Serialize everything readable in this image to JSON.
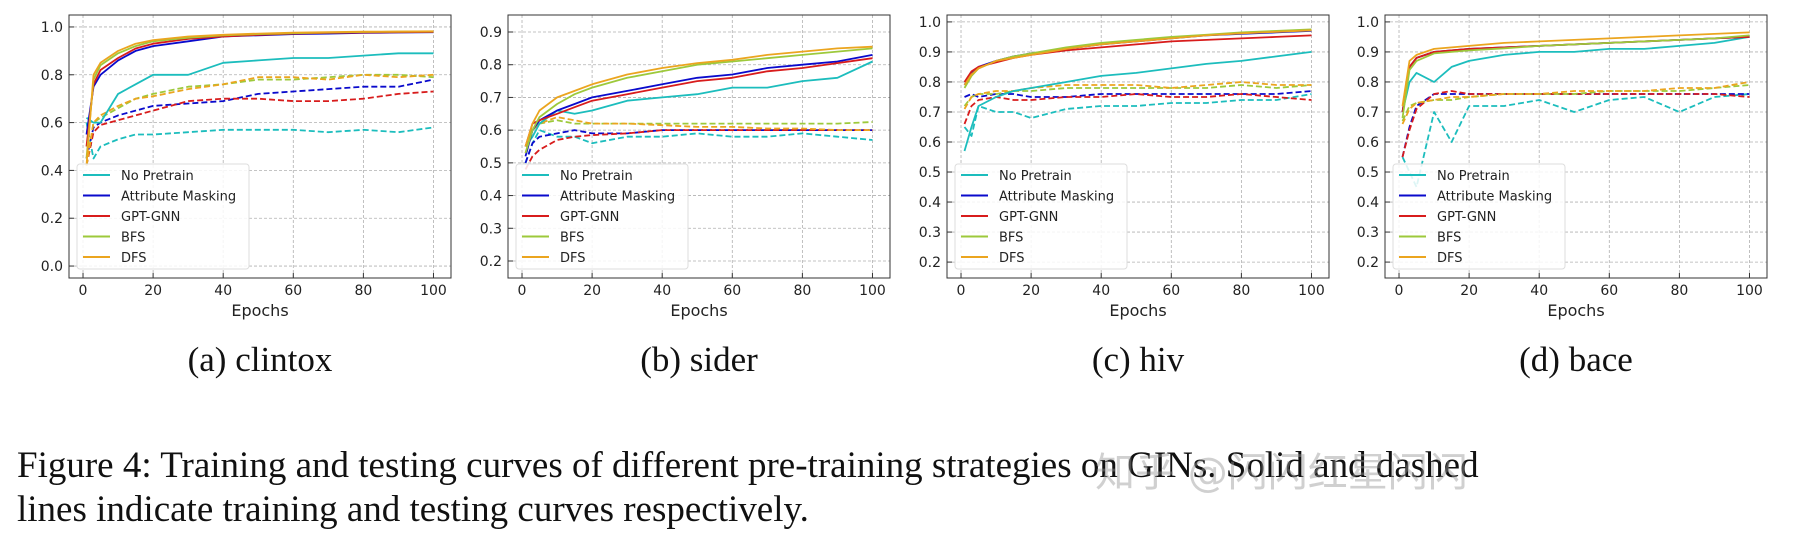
{
  "legend_labels": [
    "No Pretrain",
    "Attribute Masking",
    "GPT-GNN",
    "BFS",
    "DFS"
  ],
  "series_colors": [
    "#1cbdbd",
    "#0a0acc",
    "#d81c1c",
    "#9dc93b",
    "#eba51f"
  ],
  "line_styles": {
    "train": "solid",
    "test": "dashed"
  },
  "figure_caption": {
    "line1": "Figure 4: Training and testing curves of different pre-training strategies on GINs. Solid and dashed",
    "line2": "lines indicate training and testing curves respectively."
  },
  "watermark": "知乎 @闪闪红星闪闪",
  "chart_data": [
    {
      "type": "line",
      "caption": "(a) clintox",
      "xlabel": "Epochs",
      "ylabel": "",
      "xlim": [
        -4,
        105
      ],
      "ylim": [
        -0.05,
        1.05
      ],
      "xticks": [
        0,
        20,
        40,
        60,
        80,
        100
      ],
      "yticks": [
        "0.0",
        "0.2",
        "0.4",
        "0.6",
        "0.8",
        "1.0"
      ],
      "grid": true,
      "legend_placement": "lower-left",
      "x": [
        1,
        3,
        5,
        10,
        15,
        20,
        30,
        40,
        50,
        60,
        70,
        80,
        90,
        100
      ],
      "train": [
        [
          0.62,
          0.6,
          0.6,
          0.72,
          0.76,
          0.8,
          0.8,
          0.85,
          0.86,
          0.87,
          0.87,
          0.88,
          0.89,
          0.89
        ],
        [
          0.55,
          0.75,
          0.8,
          0.86,
          0.9,
          0.92,
          0.94,
          0.96,
          0.965,
          0.97,
          0.972,
          0.975,
          0.977,
          0.978
        ],
        [
          0.5,
          0.76,
          0.82,
          0.87,
          0.91,
          0.93,
          0.95,
          0.96,
          0.967,
          0.972,
          0.975,
          0.977,
          0.978,
          0.979
        ],
        [
          0.45,
          0.78,
          0.84,
          0.89,
          0.92,
          0.94,
          0.955,
          0.965,
          0.97,
          0.974,
          0.977,
          0.979,
          0.98,
          0.981
        ],
        [
          0.42,
          0.8,
          0.85,
          0.9,
          0.93,
          0.945,
          0.96,
          0.967,
          0.972,
          0.976,
          0.978,
          0.98,
          0.981,
          0.982
        ]
      ],
      "test": [
        [
          0.6,
          0.45,
          0.5,
          0.53,
          0.55,
          0.55,
          0.56,
          0.57,
          0.57,
          0.57,
          0.56,
          0.57,
          0.56,
          0.58
        ],
        [
          0.45,
          0.58,
          0.6,
          0.63,
          0.65,
          0.67,
          0.68,
          0.69,
          0.72,
          0.73,
          0.74,
          0.75,
          0.75,
          0.78
        ],
        [
          0.42,
          0.56,
          0.59,
          0.61,
          0.63,
          0.65,
          0.69,
          0.7,
          0.7,
          0.69,
          0.69,
          0.7,
          0.72,
          0.73
        ],
        [
          0.42,
          0.6,
          0.62,
          0.66,
          0.7,
          0.72,
          0.75,
          0.76,
          0.78,
          0.78,
          0.79,
          0.8,
          0.8,
          0.79
        ],
        [
          0.42,
          0.6,
          0.63,
          0.67,
          0.7,
          0.71,
          0.74,
          0.76,
          0.79,
          0.79,
          0.78,
          0.8,
          0.79,
          0.8
        ]
      ]
    },
    {
      "type": "line",
      "caption": "(b) sider",
      "xlabel": "Epochs",
      "ylabel": "",
      "xlim": [
        -4,
        105
      ],
      "ylim": [
        0.148,
        0.952
      ],
      "xticks": [
        0,
        20,
        40,
        60,
        80,
        100
      ],
      "yticks": [
        "0.2",
        "0.3",
        "0.4",
        "0.5",
        "0.6",
        "0.7",
        "0.8",
        "0.9"
      ],
      "grid": true,
      "legend_placement": "lower-left",
      "x": [
        1,
        3,
        5,
        10,
        15,
        20,
        30,
        40,
        50,
        60,
        70,
        80,
        90,
        100
      ],
      "train": [
        [
          0.55,
          0.58,
          0.62,
          0.66,
          0.65,
          0.66,
          0.69,
          0.7,
          0.71,
          0.73,
          0.73,
          0.75,
          0.76,
          0.81
        ],
        [
          0.52,
          0.6,
          0.63,
          0.66,
          0.68,
          0.7,
          0.72,
          0.74,
          0.76,
          0.77,
          0.79,
          0.8,
          0.81,
          0.83
        ],
        [
          0.55,
          0.62,
          0.63,
          0.65,
          0.67,
          0.69,
          0.71,
          0.73,
          0.75,
          0.76,
          0.78,
          0.79,
          0.805,
          0.82
        ],
        [
          0.53,
          0.6,
          0.64,
          0.68,
          0.71,
          0.73,
          0.76,
          0.78,
          0.8,
          0.81,
          0.82,
          0.83,
          0.84,
          0.85
        ],
        [
          0.55,
          0.62,
          0.66,
          0.7,
          0.72,
          0.74,
          0.77,
          0.79,
          0.805,
          0.815,
          0.83,
          0.84,
          0.85,
          0.855
        ]
      ],
      "test": [
        [
          0.5,
          0.56,
          0.6,
          0.58,
          0.58,
          0.56,
          0.58,
          0.58,
          0.59,
          0.58,
          0.58,
          0.59,
          0.58,
          0.57
        ],
        [
          0.5,
          0.56,
          0.58,
          0.59,
          0.6,
          0.59,
          0.59,
          0.6,
          0.6,
          0.6,
          0.6,
          0.6,
          0.6,
          0.6
        ],
        [
          0.48,
          0.52,
          0.54,
          0.57,
          0.58,
          0.585,
          0.59,
          0.6,
          0.6,
          0.6,
          0.6,
          0.6,
          0.6,
          0.6
        ],
        [
          0.55,
          0.6,
          0.62,
          0.63,
          0.62,
          0.62,
          0.62,
          0.62,
          0.62,
          0.62,
          0.62,
          0.62,
          0.62,
          0.625
        ],
        [
          0.53,
          0.6,
          0.62,
          0.64,
          0.63,
          0.62,
          0.62,
          0.615,
          0.61,
          0.61,
          0.605,
          0.605,
          0.6,
          0.6
        ]
      ]
    },
    {
      "type": "line",
      "caption": "(c) hiv",
      "xlabel": "Epochs",
      "ylabel": "",
      "xlim": [
        -4,
        105
      ],
      "ylim": [
        0.147,
        1.023
      ],
      "xticks": [
        0,
        20,
        40,
        60,
        80,
        100
      ],
      "yticks": [
        "0.2",
        "0.3",
        "0.4",
        "0.5",
        "0.6",
        "0.7",
        "0.8",
        "0.9",
        "1.0"
      ],
      "grid": true,
      "legend_placement": "lower-left",
      "x": [
        1,
        3,
        5,
        10,
        15,
        20,
        30,
        40,
        50,
        60,
        70,
        80,
        90,
        100
      ],
      "train": [
        [
          0.57,
          0.65,
          0.72,
          0.75,
          0.77,
          0.78,
          0.8,
          0.82,
          0.83,
          0.845,
          0.86,
          0.87,
          0.885,
          0.9
        ],
        [
          0.79,
          0.83,
          0.85,
          0.87,
          0.885,
          0.895,
          0.91,
          0.925,
          0.935,
          0.945,
          0.955,
          0.96,
          0.965,
          0.97
        ],
        [
          0.8,
          0.835,
          0.85,
          0.865,
          0.88,
          0.89,
          0.905,
          0.915,
          0.925,
          0.935,
          0.94,
          0.945,
          0.95,
          0.955
        ],
        [
          0.78,
          0.82,
          0.845,
          0.87,
          0.885,
          0.895,
          0.915,
          0.93,
          0.94,
          0.95,
          0.957,
          0.965,
          0.97,
          0.975
        ],
        [
          0.79,
          0.825,
          0.845,
          0.87,
          0.88,
          0.89,
          0.91,
          0.925,
          0.935,
          0.945,
          0.955,
          0.962,
          0.967,
          0.972
        ]
      ],
      "test": [
        [
          0.65,
          0.62,
          0.72,
          0.7,
          0.7,
          0.68,
          0.71,
          0.72,
          0.72,
          0.73,
          0.73,
          0.74,
          0.74,
          0.76
        ],
        [
          0.75,
          0.76,
          0.75,
          0.76,
          0.76,
          0.75,
          0.75,
          0.76,
          0.76,
          0.76,
          0.76,
          0.76,
          0.76,
          0.77
        ],
        [
          0.66,
          0.72,
          0.74,
          0.75,
          0.74,
          0.74,
          0.75,
          0.75,
          0.76,
          0.75,
          0.75,
          0.76,
          0.75,
          0.74
        ],
        [
          0.72,
          0.75,
          0.76,
          0.76,
          0.77,
          0.77,
          0.78,
          0.78,
          0.78,
          0.78,
          0.78,
          0.79,
          0.78,
          0.79
        ],
        [
          0.71,
          0.75,
          0.76,
          0.77,
          0.77,
          0.78,
          0.79,
          0.79,
          0.79,
          0.78,
          0.79,
          0.8,
          0.79,
          0.79
        ]
      ]
    },
    {
      "type": "line",
      "caption": "(d) bace",
      "xlabel": "Epochs",
      "ylabel": "",
      "xlim": [
        -4,
        105
      ],
      "ylim": [
        0.147,
        1.023
      ],
      "xticks": [
        0,
        20,
        40,
        60,
        80,
        100
      ],
      "yticks": [
        "0.2",
        "0.3",
        "0.4",
        "0.5",
        "0.6",
        "0.7",
        "0.8",
        "0.9",
        "1.0"
      ],
      "grid": true,
      "legend_placement": "lower-left",
      "x": [
        1,
        3,
        5,
        10,
        15,
        20,
        30,
        40,
        50,
        60,
        70,
        80,
        90,
        100
      ],
      "train": [
        [
          0.7,
          0.8,
          0.83,
          0.8,
          0.85,
          0.87,
          0.89,
          0.9,
          0.9,
          0.91,
          0.91,
          0.92,
          0.93,
          0.95
        ],
        [
          0.7,
          0.85,
          0.88,
          0.9,
          0.905,
          0.91,
          0.915,
          0.92,
          0.925,
          0.93,
          0.935,
          0.94,
          0.945,
          0.95
        ],
        [
          0.7,
          0.85,
          0.88,
          0.9,
          0.905,
          0.91,
          0.915,
          0.92,
          0.925,
          0.93,
          0.935,
          0.94,
          0.945,
          0.95
        ],
        [
          0.68,
          0.84,
          0.87,
          0.895,
          0.9,
          0.905,
          0.912,
          0.92,
          0.925,
          0.93,
          0.935,
          0.94,
          0.945,
          0.955
        ],
        [
          0.72,
          0.87,
          0.89,
          0.91,
          0.915,
          0.92,
          0.93,
          0.935,
          0.94,
          0.945,
          0.95,
          0.955,
          0.96,
          0.965
        ]
      ],
      "test": [
        [
          0.55,
          0.5,
          0.45,
          0.7,
          0.6,
          0.72,
          0.72,
          0.74,
          0.7,
          0.74,
          0.75,
          0.7,
          0.75,
          0.76
        ],
        [
          0.55,
          0.65,
          0.72,
          0.76,
          0.76,
          0.76,
          0.76,
          0.76,
          0.76,
          0.76,
          0.76,
          0.76,
          0.76,
          0.76
        ],
        [
          0.55,
          0.64,
          0.71,
          0.76,
          0.77,
          0.76,
          0.76,
          0.76,
          0.76,
          0.76,
          0.76,
          0.76,
          0.76,
          0.75
        ],
        [
          0.67,
          0.72,
          0.73,
          0.74,
          0.74,
          0.75,
          0.76,
          0.76,
          0.76,
          0.77,
          0.77,
          0.77,
          0.78,
          0.79
        ],
        [
          0.66,
          0.71,
          0.73,
          0.74,
          0.75,
          0.75,
          0.76,
          0.76,
          0.77,
          0.77,
          0.77,
          0.78,
          0.78,
          0.8
        ]
      ]
    }
  ]
}
